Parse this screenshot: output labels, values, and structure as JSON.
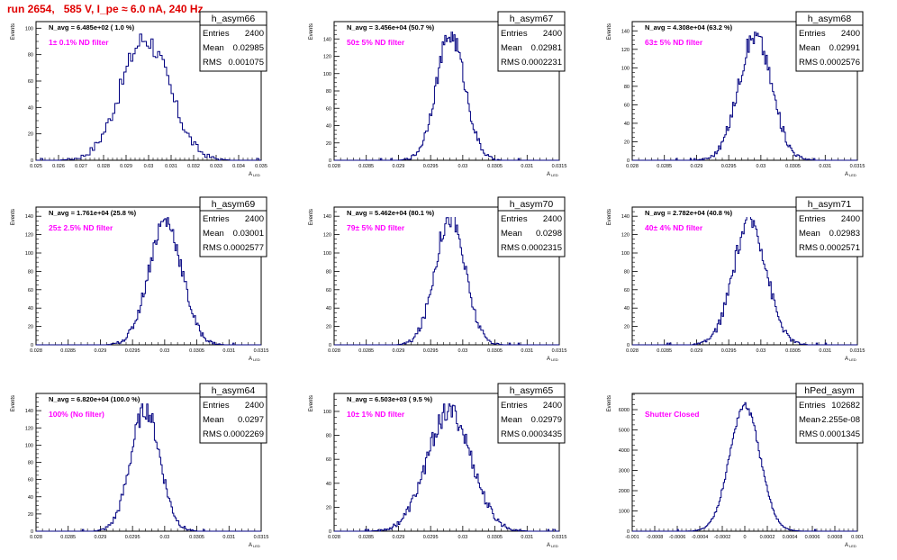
{
  "page_title": "run 2654,   585 V, I_pe ≈ 6.0 nA, 240 Hz",
  "colors": {
    "title": "#e00000",
    "annotation": "#ff00ff",
    "histogram": "#000080",
    "frame": "#000000",
    "background": "#ffffff"
  },
  "chart_data": [
    {
      "type": "histogram",
      "id": "h_asym66",
      "title": "h_asym66",
      "navg": "N_avg = 6.485e+02 ( 1.0 %)",
      "annotation": "1± 0.1% ND filter",
      "stats": {
        "entries_label": "Entries",
        "entries": "2400",
        "mean_label": "Mean",
        "mean": "0.02985",
        "rms_label": "RMS",
        "rms": "0.001075"
      },
      "xlabel": "A",
      "xlabel_sub": "LED",
      "ylabel": "Events",
      "xlim": [
        0.025,
        0.035
      ],
      "ylim": [
        0,
        105
      ],
      "xticks": [
        "0.025",
        "0.026",
        "0.027",
        "0.028",
        "0.029",
        "0.03",
        "0.031",
        "0.032",
        "0.033",
        "0.034",
        "0.035"
      ],
      "xtick_values": [
        0.025,
        0.026,
        0.027,
        0.028,
        0.029,
        0.03,
        0.031,
        0.032,
        0.033,
        0.034,
        0.035
      ],
      "yticks": [
        "0",
        "20",
        "40",
        "60",
        "80",
        "100"
      ],
      "ytick_values": [
        0,
        20,
        40,
        60,
        80,
        100
      ],
      "bins": {
        "mean": 0.02985,
        "sigma": 0.001075,
        "peak": 92,
        "width": 0.0001,
        "jitter": 9
      }
    },
    {
      "type": "histogram",
      "id": "h_asym67",
      "title": "h_asym67",
      "navg": "N_avg = 3.456e+04 (50.7 %)",
      "annotation": "50± 5% ND filter",
      "stats": {
        "entries_label": "Entries",
        "entries": "2400",
        "mean_label": "Mean",
        "mean": "0.02981",
        "rms_label": "RMS",
        "rms": "0.0002231"
      },
      "xlabel": "A",
      "xlabel_sub": "LED",
      "ylabel": "Events",
      "xlim": [
        0.028,
        0.0315
      ],
      "ylim": [
        0,
        160
      ],
      "xticks": [
        "0.028",
        "0.0285",
        "0.029",
        "0.0295",
        "0.03",
        "0.0305",
        "0.031",
        "0.0315"
      ],
      "xtick_values": [
        0.028,
        0.0285,
        0.029,
        0.0295,
        0.03,
        0.0305,
        0.031,
        0.0315
      ],
      "yticks": [
        "0",
        "20",
        "40",
        "60",
        "80",
        "100",
        "120",
        "140"
      ],
      "ytick_values": [
        0,
        20,
        40,
        60,
        80,
        100,
        120,
        140
      ],
      "bins": {
        "mean": 0.02981,
        "sigma": 0.0002231,
        "peak": 145,
        "width": 2e-05,
        "jitter": 12
      }
    },
    {
      "type": "histogram",
      "id": "h_asym68",
      "title": "h_asym68",
      "navg": "N_avg = 4.308e+04 (63.2 %)",
      "annotation": "63± 5% ND filter",
      "stats": {
        "entries_label": "Entries",
        "entries": "2400",
        "mean_label": "Mean",
        "mean": "0.02991",
        "rms_label": "RMS",
        "rms": "0.0002576"
      },
      "xlabel": "A",
      "xlabel_sub": "LED",
      "ylabel": "Events",
      "xlim": [
        0.028,
        0.0315
      ],
      "ylim": [
        0,
        150
      ],
      "xticks": [
        "0.028",
        "0.0285",
        "0.029",
        "0.0295",
        "0.03",
        "0.0305",
        "0.031",
        "0.0315"
      ],
      "xtick_values": [
        0.028,
        0.0285,
        0.029,
        0.0295,
        0.03,
        0.0305,
        0.031,
        0.0315
      ],
      "yticks": [
        "0",
        "20",
        "40",
        "60",
        "80",
        "100",
        "120",
        "140"
      ],
      "ytick_values": [
        0,
        20,
        40,
        60,
        80,
        100,
        120,
        140
      ],
      "bins": {
        "mean": 0.02991,
        "sigma": 0.0002576,
        "peak": 135,
        "width": 2e-05,
        "jitter": 11
      }
    },
    {
      "type": "histogram",
      "id": "h_asym69",
      "title": "h_asym69",
      "navg": "N_avg = 1.761e+04 (25.8 %)",
      "annotation": "25± 2.5% ND filter",
      "stats": {
        "entries_label": "Entries",
        "entries": "2400",
        "mean_label": "Mean",
        "mean": "0.03001",
        "rms_label": "RMS",
        "rms": "0.0002577"
      },
      "xlabel": "A",
      "xlabel_sub": "LED",
      "ylabel": "Events",
      "xlim": [
        0.028,
        0.0315
      ],
      "ylim": [
        0,
        150
      ],
      "xticks": [
        "0.028",
        "0.0285",
        "0.029",
        "0.0295",
        "0.03",
        "0.0305",
        "0.031",
        "0.0315"
      ],
      "xtick_values": [
        0.028,
        0.0285,
        0.029,
        0.0295,
        0.03,
        0.0305,
        0.031,
        0.0315
      ],
      "yticks": [
        "0",
        "20",
        "40",
        "60",
        "80",
        "100",
        "120",
        "140"
      ],
      "ytick_values": [
        0,
        20,
        40,
        60,
        80,
        100,
        120,
        140
      ],
      "bins": {
        "mean": 0.03001,
        "sigma": 0.0002577,
        "peak": 135,
        "width": 2e-05,
        "jitter": 11
      }
    },
    {
      "type": "histogram",
      "id": "h_asym70",
      "title": "h_asym70",
      "navg": "N_avg = 5.462e+04 (80.1 %)",
      "annotation": "79± 5% ND filter",
      "stats": {
        "entries_label": "Entries",
        "entries": "2400",
        "mean_label": "Mean",
        "mean": "0.0298",
        "rms_label": "RMS",
        "rms": "0.0002315"
      },
      "xlabel": "A",
      "xlabel_sub": "LED",
      "ylabel": "Events",
      "xlim": [
        0.028,
        0.0315
      ],
      "ylim": [
        0,
        150
      ],
      "xticks": [
        "0.028",
        "0.0285",
        "0.029",
        "0.0295",
        "0.03",
        "0.0305",
        "0.031",
        "0.0315"
      ],
      "xtick_values": [
        0.028,
        0.0285,
        0.029,
        0.0295,
        0.03,
        0.0305,
        0.031,
        0.0315
      ],
      "yticks": [
        "0",
        "20",
        "40",
        "60",
        "80",
        "100",
        "120",
        "140"
      ],
      "ytick_values": [
        0,
        20,
        40,
        60,
        80,
        100,
        120,
        140
      ],
      "bins": {
        "mean": 0.0298,
        "sigma": 0.0002315,
        "peak": 140,
        "width": 2e-05,
        "jitter": 12
      }
    },
    {
      "type": "histogram",
      "id": "h_asym71",
      "title": "h_asym71",
      "navg": "N_avg = 2.782e+04 (40.8 %)",
      "annotation": "40± 4% ND filter",
      "stats": {
        "entries_label": "Entries",
        "entries": "2400",
        "mean_label": "Mean",
        "mean": "0.02983",
        "rms_label": "RMS",
        "rms": "0.0002571"
      },
      "xlabel": "A",
      "xlabel_sub": "LED",
      "ylabel": "Events",
      "xlim": [
        0.028,
        0.0315
      ],
      "ylim": [
        0,
        150
      ],
      "xticks": [
        "0.028",
        "0.0285",
        "0.029",
        "0.0295",
        "0.03",
        "0.0305",
        "0.031",
        "0.0315"
      ],
      "xtick_values": [
        0.028,
        0.0285,
        0.029,
        0.0295,
        0.03,
        0.0305,
        0.031,
        0.0315
      ],
      "yticks": [
        "0",
        "20",
        "40",
        "60",
        "80",
        "100",
        "120",
        "140"
      ],
      "ytick_values": [
        0,
        20,
        40,
        60,
        80,
        100,
        120,
        140
      ],
      "bins": {
        "mean": 0.02983,
        "sigma": 0.0002571,
        "peak": 135,
        "width": 2e-05,
        "jitter": 11
      }
    },
    {
      "type": "histogram",
      "id": "h_asym64",
      "title": "h_asym64",
      "navg": "N_avg = 6.820e+04 (100.0 %)",
      "annotation": "100% (No filter)",
      "stats": {
        "entries_label": "Entries",
        "entries": "2400",
        "mean_label": "Mean",
        "mean": "0.0297",
        "rms_label": "RMS",
        "rms": "0.0002269"
      },
      "xlabel": "A",
      "xlabel_sub": "LED",
      "ylabel": "Events",
      "xlim": [
        0.028,
        0.0315
      ],
      "ylim": [
        0,
        160
      ],
      "xticks": [
        "0.028",
        "0.0285",
        "0.029",
        "0.0295",
        "0.03",
        "0.0305",
        "0.031",
        "0.0315"
      ],
      "xtick_values": [
        0.028,
        0.0285,
        0.029,
        0.0295,
        0.03,
        0.0305,
        0.031,
        0.0315
      ],
      "yticks": [
        "0",
        "20",
        "40",
        "60",
        "80",
        "100",
        "120",
        "140"
      ],
      "ytick_values": [
        0,
        20,
        40,
        60,
        80,
        100,
        120,
        140
      ],
      "bins": {
        "mean": 0.0297,
        "sigma": 0.0002269,
        "peak": 142,
        "width": 2e-05,
        "jitter": 12
      }
    },
    {
      "type": "histogram",
      "id": "h_asym65",
      "title": "h_asym65",
      "navg": "N_avg = 6.503e+03 ( 9.5 %)",
      "annotation": "10± 1% ND filter",
      "stats": {
        "entries_label": "Entries",
        "entries": "2400",
        "mean_label": "Mean",
        "mean": "0.02979",
        "rms_label": "RMS",
        "rms": "0.0003435"
      },
      "xlabel": "A",
      "xlabel_sub": "LED",
      "ylabel": "Events",
      "xlim": [
        0.028,
        0.0315
      ],
      "ylim": [
        0,
        115
      ],
      "xticks": [
        "0.028",
        "0.0285",
        "0.029",
        "0.0295",
        "0.03",
        "0.0305",
        "0.031",
        "0.0315"
      ],
      "xtick_values": [
        0.028,
        0.0285,
        0.029,
        0.0295,
        0.03,
        0.0305,
        0.031,
        0.0315
      ],
      "yticks": [
        "0",
        "20",
        "40",
        "60",
        "80",
        "100"
      ],
      "ytick_values": [
        0,
        20,
        40,
        60,
        80,
        100
      ],
      "bins": {
        "mean": 0.02979,
        "sigma": 0.0003435,
        "peak": 100,
        "width": 2e-05,
        "jitter": 9
      }
    },
    {
      "type": "histogram",
      "id": "hPed_asym",
      "title": "hPed_asym",
      "navg": "",
      "annotation": "Shutter Closed",
      "stats": {
        "entries_label": "Entries",
        "entries": "102682",
        "mean_label": "Mean",
        "mean": "-2.255e-08",
        "rms_label": "RMS",
        "rms": "0.0001345"
      },
      "xlabel": "A",
      "xlabel_sub": "LED",
      "ylabel": "Events",
      "xlim": [
        -0.001,
        0.001
      ],
      "ylim": [
        0,
        6800
      ],
      "xticks": [
        "-0.001",
        "-0.0008",
        "-0.0006",
        "-0.0004",
        "-0.0002",
        "0",
        "0.0002",
        "0.0004",
        "0.0006",
        "0.0008",
        "0.001"
      ],
      "xtick_values": [
        -0.001,
        -0.0008,
        -0.0006,
        -0.0004,
        -0.0002,
        0,
        0.0002,
        0.0004,
        0.0006,
        0.0008,
        0.001
      ],
      "yticks": [
        "0",
        "1000",
        "2000",
        "3000",
        "4000",
        "5000",
        "6000"
      ],
      "ytick_values": [
        0,
        1000,
        2000,
        3000,
        4000,
        5000,
        6000
      ],
      "bins": {
        "mean": 0,
        "sigma": 0.0001345,
        "peak": 6200,
        "width": 1e-05,
        "jitter": 180
      }
    }
  ]
}
